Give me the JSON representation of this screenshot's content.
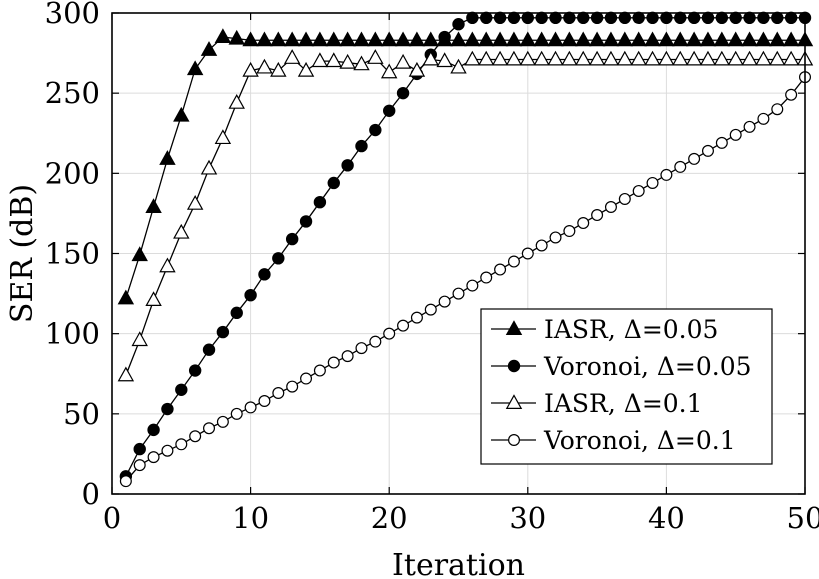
{
  "chart_data": {
    "type": "line",
    "xlabel": "Iteration",
    "ylabel": "SER (dB)",
    "xlim": [
      0,
      50
    ],
    "ylim": [
      0,
      300
    ],
    "xticks": [
      0,
      10,
      20,
      30,
      40,
      50
    ],
    "yticks": [
      0,
      50,
      100,
      150,
      200,
      250,
      300
    ],
    "grid": true,
    "legend_position": "lower-right",
    "series": [
      {
        "name": "IASR, Δ=0.05",
        "marker": "triangle-filled",
        "x": [
          1,
          2,
          3,
          4,
          5,
          6,
          7,
          8,
          9,
          10,
          11,
          12,
          13,
          14,
          15,
          16,
          17,
          18,
          19,
          20,
          21,
          22,
          23,
          24,
          25,
          26,
          27,
          28,
          29,
          30,
          31,
          32,
          33,
          34,
          35,
          36,
          37,
          38,
          39,
          40,
          41,
          42,
          43,
          44,
          45,
          46,
          47,
          48,
          49,
          50
        ],
        "y": [
          122,
          149,
          179,
          209,
          236,
          265,
          277,
          285,
          284,
          283,
          283,
          283,
          283,
          283,
          283,
          283,
          283,
          283,
          283,
          283,
          283,
          283,
          283,
          283,
          283,
          283,
          283,
          283,
          283,
          283,
          283,
          283,
          283,
          283,
          283,
          283,
          283,
          283,
          283,
          283,
          283,
          283,
          283,
          283,
          283,
          283,
          283,
          283,
          283,
          283
        ]
      },
      {
        "name": "Voronoi, Δ=0.05",
        "marker": "circle-filled",
        "x": [
          1,
          2,
          3,
          4,
          5,
          6,
          7,
          8,
          9,
          10,
          11,
          12,
          13,
          14,
          15,
          16,
          17,
          18,
          19,
          20,
          21,
          22,
          23,
          24,
          25,
          26,
          27,
          28,
          29,
          30,
          31,
          32,
          33,
          34,
          35,
          36,
          37,
          38,
          39,
          40,
          41,
          42,
          43,
          44,
          45,
          46,
          47,
          48,
          49,
          50
        ],
        "y": [
          11,
          28,
          40,
          53,
          65,
          77,
          90,
          101,
          113,
          124,
          137,
          147,
          159,
          170,
          182,
          194,
          205,
          217,
          227,
          239,
          250,
          262,
          274,
          285,
          293,
          297,
          297,
          297,
          297,
          297,
          297,
          297,
          297,
          297,
          297,
          297,
          297,
          297,
          297,
          297,
          297,
          297,
          297,
          297,
          297,
          297,
          297,
          297,
          297,
          297
        ]
      },
      {
        "name": "IASR, Δ=0.1",
        "marker": "triangle-open",
        "x": [
          1,
          2,
          3,
          4,
          5,
          6,
          7,
          8,
          9,
          10,
          11,
          12,
          13,
          14,
          15,
          16,
          17,
          18,
          19,
          20,
          21,
          22,
          23,
          24,
          25,
          26,
          27,
          28,
          29,
          30,
          31,
          32,
          33,
          34,
          35,
          36,
          37,
          38,
          39,
          40,
          41,
          42,
          43,
          44,
          45,
          46,
          47,
          48,
          49,
          50
        ],
        "y": [
          74,
          96,
          121,
          142,
          163,
          181,
          203,
          222,
          244,
          264,
          266,
          264,
          272,
          264,
          270,
          270,
          269,
          268,
          272,
          263,
          269,
          264,
          271,
          270,
          266,
          271,
          271,
          271,
          271,
          271,
          271,
          271,
          271,
          271,
          271,
          271,
          271,
          271,
          271,
          271,
          271,
          271,
          271,
          271,
          271,
          271,
          271,
          271,
          271,
          271
        ]
      },
      {
        "name": "Voronoi, Δ=0.1",
        "marker": "circle-open",
        "x": [
          1,
          2,
          3,
          4,
          5,
          6,
          7,
          8,
          9,
          10,
          11,
          12,
          13,
          14,
          15,
          16,
          17,
          18,
          19,
          20,
          21,
          22,
          23,
          24,
          25,
          26,
          27,
          28,
          29,
          30,
          31,
          32,
          33,
          34,
          35,
          36,
          37,
          38,
          39,
          40,
          41,
          42,
          43,
          44,
          45,
          46,
          47,
          48,
          49,
          50
        ],
        "y": [
          8,
          18,
          23,
          27,
          31,
          36,
          41,
          45,
          50,
          54,
          58,
          63,
          67,
          72,
          77,
          82,
          86,
          91,
          95,
          100,
          105,
          110,
          115,
          120,
          125,
          130,
          135,
          140,
          145,
          150,
          155,
          160,
          164,
          169,
          174,
          179,
          184,
          189,
          194,
          199,
          204,
          209,
          214,
          219,
          224,
          229,
          234,
          240,
          249,
          260
        ]
      }
    ]
  }
}
